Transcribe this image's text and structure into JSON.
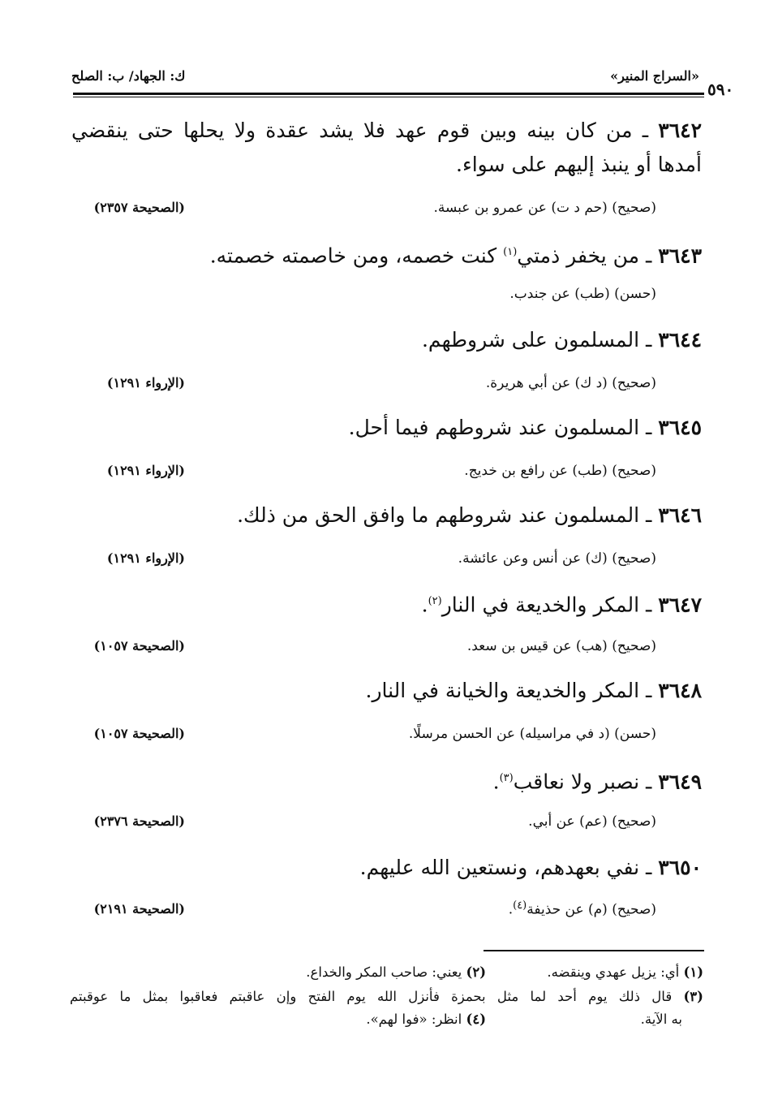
{
  "header": {
    "book_title": "«السراج المنير»",
    "section": "ك: الجهاد/ ب: الصلح",
    "page_number": "٥٩٠"
  },
  "entries": [
    {
      "number": "٣٦٤٢",
      "text": "من كان بينه وبين قوم عهد فلا يشد عقدة ولا يحلها حتى ينقضي أمدها أو ينبذ إليهم على سواء.",
      "source": "(صحيح) (حم د ت) عن عمرو بن عبسة.",
      "reference": "(الصحيحة ٢٣٥٧)"
    },
    {
      "number": "٣٦٤٣",
      "text_before": "من يخفر ذمتي",
      "footnote_mark": "(١)",
      "text_after": " كنت خصمه، ومن خاصمته خصمته.",
      "source": "(حسن) (طب) عن جندب.",
      "reference": ""
    },
    {
      "number": "٣٦٤٤",
      "text": "المسلمون على شروطهم.",
      "source": "(صحيح) (د ك) عن أبي هريرة.",
      "reference": "(الإرواء ١٢٩١)"
    },
    {
      "number": "٣٦٤٥",
      "text": "المسلمون عند شروطهم فيما أحل.",
      "source": "(صحيح) (طب) عن رافع بن خديج.",
      "reference": "(الإرواء ١٢٩١)"
    },
    {
      "number": "٣٦٤٦",
      "text": "المسلمون عند شروطهم ما وافق الحق من ذلك.",
      "source": "(صحيح) (ك) عن أنس وعن عائشة.",
      "reference": "(الإرواء ١٢٩١)"
    },
    {
      "number": "٣٦٤٧",
      "text_before": "المكر والخديعة في النار",
      "footnote_mark": "(٢)",
      "text_after": ".",
      "source": "(صحيح) (هب) عن قيس بن سعد.",
      "reference": "(الصحيحة ١٠٥٧)"
    },
    {
      "number": "٣٦٤٨",
      "text": "المكر والخديعة والخيانة في النار.",
      "source": "(حسن) (د في مراسيله) عن الحسن مرسلًا.",
      "reference": "(الصحيحة ١٠٥٧)"
    },
    {
      "number": "٣٦٤٩",
      "text_before": "نصبر ولا نعاقب",
      "footnote_mark": "(٣)",
      "text_after": ".",
      "source": "(صحيح) (عم) عن أبي.",
      "reference": "(الصحيحة ٢٣٧٦)"
    },
    {
      "number": "٣٦٥٠",
      "text": "نفي بعهدهم، ونستعين الله عليهم.",
      "source_before": "(صحيح) (م) عن حذيفة",
      "source_mark": "(٤)",
      "source_after": ".",
      "reference": "(الصحيحة ٢١٩١)"
    }
  ],
  "footnotes": [
    {
      "mark": "(١)",
      "text": "أي: يزيل عهدي وينقضه."
    },
    {
      "mark": "(٢)",
      "text": "يعني: صاحب المكر والخداع."
    },
    {
      "mark": "(٣)",
      "text": "قال ذلك يوم أحد لما مثل بحمزة فأنزل الله يوم الفتح وإن عاقبتم فعاقبوا بمثل ما عوقبتم",
      "text_cont": "به الآية."
    },
    {
      "mark": "(٤)",
      "text": "انظر: «فوا لهم»."
    }
  ]
}
